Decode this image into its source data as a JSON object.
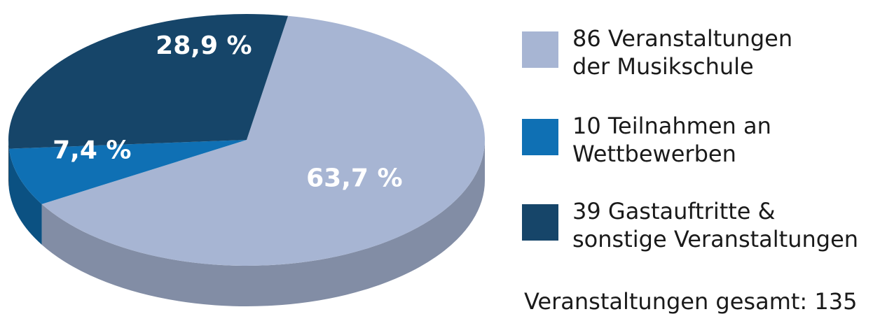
{
  "chart_data": {
    "type": "pie3d",
    "categories": [
      "86 Veranstaltungen\nder Musikschule",
      "10 Teilnahmen an\nWettbewerben",
      "39 Gastauftritte &\nsonstige Veranstaltungen"
    ],
    "values": [
      63.7,
      7.4,
      28.9
    ],
    "value_labels": [
      "63,7 %",
      "7,4 %",
      "28,9 %"
    ],
    "colors": [
      "#a7b5d3",
      "#0f70b4",
      "#164569"
    ],
    "annotation": "Veranstaltungen gesamt: 135"
  }
}
